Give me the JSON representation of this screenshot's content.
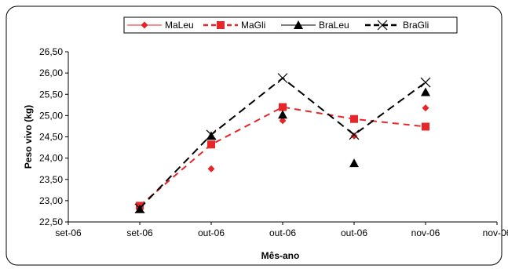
{
  "chart_data": {
    "type": "line",
    "xlabel": "Mês-ano",
    "ylabel": "Peso vivo (kg)",
    "ylim": [
      22.5,
      26.5
    ],
    "y_ticks": [
      "22,50",
      "23,00",
      "23,50",
      "24,00",
      "24,50",
      "25,00",
      "25,50",
      "26,00",
      "26,50"
    ],
    "x_ticks": [
      "set-06",
      "set-06",
      "out-06",
      "out-06",
      "out-06",
      "nov-06",
      "nov-06"
    ],
    "x": [
      1,
      2,
      3,
      4,
      5
    ],
    "legend_position": "top",
    "grid": false,
    "series": [
      {
        "name": "MaLeu",
        "values": [
          22.88,
          23.75,
          24.88,
          24.52,
          25.18
        ],
        "color": "#e8262a",
        "marker": "diamond",
        "line": "solid",
        "line_visible": false
      },
      {
        "name": "MaGli",
        "values": [
          22.88,
          24.32,
          25.2,
          24.92,
          24.74
        ],
        "color": "#e8262a",
        "marker": "square",
        "line": "dashed",
        "line_visible": true
      },
      {
        "name": "BraLeu",
        "values": [
          22.8,
          24.52,
          25.02,
          23.88,
          25.55
        ],
        "color": "#000000",
        "marker": "triangle",
        "line": "solid",
        "line_visible": false
      },
      {
        "name": "BraGli",
        "values": [
          22.82,
          24.55,
          25.88,
          24.55,
          25.78
        ],
        "color": "#000000",
        "marker": "x",
        "line": "dashed",
        "line_visible": true
      }
    ]
  }
}
